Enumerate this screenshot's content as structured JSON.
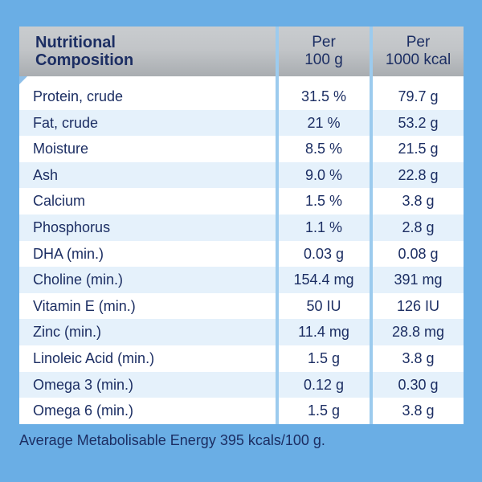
{
  "colors": {
    "background": "#6aaee5",
    "panel": "#ffffff",
    "header_gray": "#c2c5c8",
    "text_navy": "#1c2e63",
    "row_stripe": "#e5f1fb"
  },
  "header": {
    "name_line1": "Nutritional",
    "name_line2": "Composition",
    "col1_line1": "Per",
    "col1_line2": "100 g",
    "col2_line1": "Per",
    "col2_line2": "1000 kcal"
  },
  "rows": [
    {
      "name": "Protein, crude",
      "per100g": "31.5 %",
      "per1000kcal": "79.7 g"
    },
    {
      "name": "Fat, crude",
      "per100g": "21 %",
      "per1000kcal": "53.2 g"
    },
    {
      "name": "Moisture",
      "per100g": "8.5 %",
      "per1000kcal": "21.5 g"
    },
    {
      "name": "Ash",
      "per100g": "9.0 %",
      "per1000kcal": "22.8 g"
    },
    {
      "name": "Calcium",
      "per100g": "1.5 %",
      "per1000kcal": "3.8 g"
    },
    {
      "name": "Phosphorus",
      "per100g": "1.1 %",
      "per1000kcal": "2.8 g"
    },
    {
      "name": "DHA (min.)",
      "per100g": "0.03 g",
      "per1000kcal": "0.08 g"
    },
    {
      "name": "Choline (min.)",
      "per100g": "154.4 mg",
      "per1000kcal": "391 mg"
    },
    {
      "name": "Vitamin E (min.)",
      "per100g": "50 IU",
      "per1000kcal": "126 IU"
    },
    {
      "name": "Zinc (min.)",
      "per100g": "11.4 mg",
      "per1000kcal": "28.8 mg"
    },
    {
      "name": "Linoleic Acid (min.)",
      "per100g": "1.5 g",
      "per1000kcal": "3.8 g"
    },
    {
      "name": "Omega 3 (min.)",
      "per100g": "0.12 g",
      "per1000kcal": "0.30 g"
    },
    {
      "name": "Omega 6 (min.)",
      "per100g": "1.5 g",
      "per1000kcal": "3.8 g"
    }
  ],
  "footnote": "Average Metabolisable Energy 395 kcals/100 g."
}
